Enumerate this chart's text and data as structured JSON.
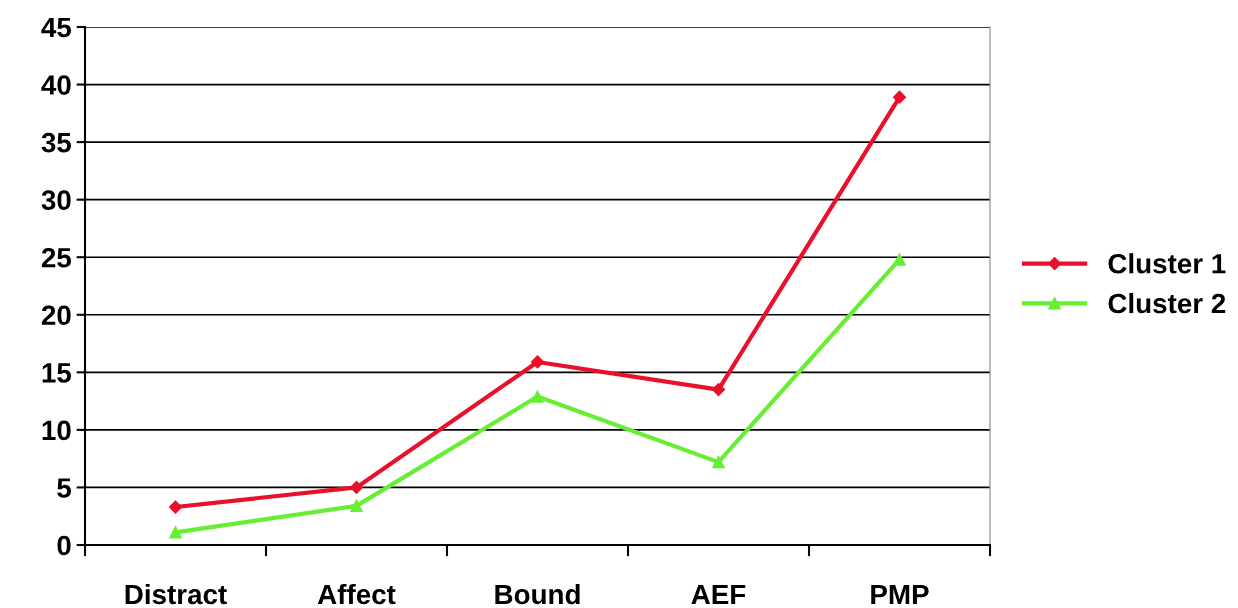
{
  "chart_data": {
    "type": "line",
    "categories": [
      "Distract",
      "Affect",
      "Bound",
      "AEF",
      "PMP"
    ],
    "series": [
      {
        "name": "Cluster 1",
        "color": "#e8102a",
        "marker": "diamond",
        "values": [
          3.3,
          5,
          15.9,
          13.5,
          38.9
        ]
      },
      {
        "name": "Cluster 2",
        "color": "#66ee33",
        "marker": "triangle",
        "values": [
          1.1,
          3.4,
          12.9,
          7.2,
          24.8
        ]
      }
    ],
    "ylim": [
      0,
      45
    ],
    "yticks": [
      0,
      5,
      10,
      15,
      20,
      25,
      30,
      35,
      40,
      45
    ],
    "grid": "y",
    "legend": "right",
    "line_style": "solid"
  }
}
